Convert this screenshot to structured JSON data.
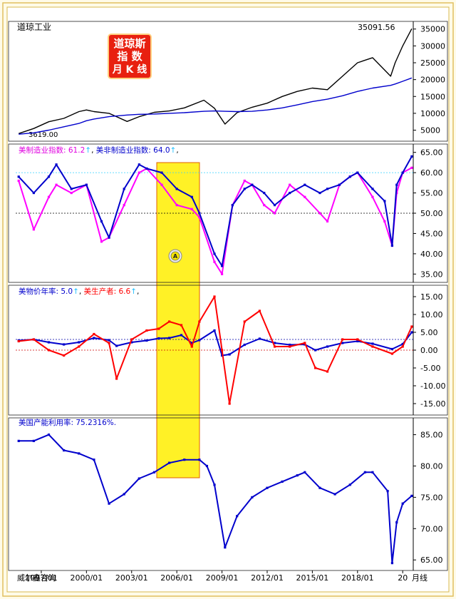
{
  "logo": {
    "line1": "道琼斯",
    "line2": "指  数",
    "line3": "月 K 线"
  },
  "footer": {
    "source": "威尔鑫咨询",
    "period": "月线"
  },
  "chart_data": [
    {
      "type": "line",
      "title": "道琼工业",
      "last_label": "35091.56",
      "low_label": "3619.00",
      "ylim": [
        3000,
        36000
      ],
      "yticks": [
        5000,
        10000,
        15000,
        20000,
        25000,
        30000,
        35000
      ],
      "x": [
        1995.5,
        1996.5,
        1997.5,
        1998.5,
        1999.5,
        2000.0,
        2000.5,
        2001.5,
        2002.7,
        2003.5,
        2004.5,
        2005.5,
        2006.5,
        2007.8,
        2008.5,
        2009.2,
        2010.0,
        2011.0,
        2012.0,
        2013.0,
        2014.0,
        2015.0,
        2016.0,
        2017.0,
        2018.0,
        2019.0,
        2020.2,
        2020.5,
        2021.0,
        2021.6
      ],
      "series": [
        {
          "name": "",
          "color": "#000000",
          "values": [
            4000,
            5500,
            7500,
            8500,
            10500,
            11000,
            10500,
            10000,
            7600,
            9000,
            10300,
            10700,
            11600,
            13900,
            11500,
            6800,
            10200,
            11800,
            13000,
            15000,
            16500,
            17500,
            17000,
            21000,
            25000,
            26500,
            21000,
            25000,
            30000,
            35091.56
          ]
        },
        {
          "name": "",
          "color": "#0000cc",
          "values": [
            3800,
            4200,
            5000,
            6000,
            7000,
            7800,
            8300,
            9000,
            9500,
            9700,
            9800,
            10000,
            10200,
            10600,
            10700,
            10600,
            10500,
            10600,
            11000,
            11600,
            12500,
            13500,
            14200,
            15200,
            16500,
            17500,
            18300,
            18700,
            19500,
            20500
          ]
        }
      ]
    },
    {
      "type": "line",
      "title": "",
      "ylim": [
        34,
        66
      ],
      "yticks": [
        35,
        40,
        45,
        50,
        55,
        60,
        65
      ],
      "ref_lines": [
        50,
        60
      ],
      "x": [
        1995.5,
        1996.5,
        1997.5,
        1998.0,
        1999.0,
        2000.0,
        2001.0,
        2001.5,
        2002.5,
        2003.5,
        2004.0,
        2005.0,
        2006.0,
        2007.0,
        2007.5,
        2008.5,
        2009.0,
        2009.7,
        2010.5,
        2011.0,
        2011.8,
        2012.5,
        2013.5,
        2014.5,
        2015.5,
        2016.0,
        2016.8,
        2017.5,
        2018.0,
        2019.0,
        2019.8,
        2020.3,
        2020.6,
        2021.0,
        2021.6
      ],
      "series": [
        {
          "name": "美制造业指数: 61.2",
          "color": "#ff00ff",
          "values": [
            58,
            46,
            54,
            57,
            55,
            57,
            43,
            44,
            52,
            60,
            61,
            57,
            52,
            51,
            49,
            38,
            35,
            52,
            58,
            57,
            52,
            50,
            57,
            54,
            50,
            48,
            57,
            59,
            60,
            54,
            48,
            42,
            55,
            60,
            61.2
          ]
        },
        {
          "name": "美非制造业指数: 64.0",
          "color": "#0000cc",
          "values": [
            59,
            55,
            59,
            62,
            56,
            57,
            48,
            44,
            56,
            62,
            61,
            60,
            56,
            54,
            50,
            40,
            37,
            52,
            56,
            57,
            55,
            52,
            55,
            57,
            55,
            56,
            57,
            59,
            60,
            56,
            53,
            42,
            57,
            60,
            64.0
          ]
        }
      ]
    },
    {
      "type": "line",
      "title": "",
      "ylim": [
        -17,
        17
      ],
      "yticks": [
        -15,
        -10,
        -5,
        0,
        5,
        10,
        15
      ],
      "ref_lines": [
        0,
        3
      ],
      "x": [
        1995.5,
        1996.5,
        1997.5,
        1998.5,
        1999.5,
        2000.5,
        2001.5,
        2002.0,
        2003.0,
        2004.0,
        2004.8,
        2005.5,
        2006.3,
        2007.0,
        2007.5,
        2008.5,
        2009.0,
        2009.5,
        2010.5,
        2011.5,
        2012.5,
        2013.5,
        2014.5,
        2015.2,
        2016.0,
        2017.0,
        2018.0,
        2019.0,
        2020.3,
        2021.0,
        2021.6
      ],
      "series": [
        {
          "name": "美物价年率: 5.0",
          "color": "#0000cc",
          "values": [
            2.7,
            3.0,
            2.2,
            1.6,
            2.2,
            3.4,
            2.8,
            1.2,
            2.2,
            2.7,
            3.3,
            3.4,
            4.2,
            2.0,
            2.8,
            5.5,
            -1.5,
            -1.2,
            1.5,
            3.2,
            2.0,
            1.5,
            1.6,
            0.0,
            1.0,
            2.0,
            2.5,
            1.8,
            0.3,
            1.7,
            5.0
          ]
        },
        {
          "name": "美生产者: 6.6",
          "color": "#ff0000",
          "values": [
            2.5,
            3.0,
            0.0,
            -1.5,
            1.0,
            4.5,
            2.0,
            -8.0,
            3.0,
            5.5,
            6.0,
            8.0,
            7.0,
            1.0,
            8.0,
            15.0,
            0.0,
            -15.0,
            8.0,
            11.0,
            1.0,
            1.0,
            2.0,
            -5.0,
            -6.0,
            3.0,
            3.0,
            1.0,
            -1.0,
            1.0,
            6.6
          ]
        }
      ]
    },
    {
      "type": "line",
      "title": "美国产能利用率: 75.2316%.",
      "ylim": [
        64,
        87
      ],
      "yticks": [
        65,
        70,
        75,
        80,
        85
      ],
      "xticks": [
        "1997/01",
        "2000/01",
        "2003/01",
        "2006/01",
        "2009/01",
        "2012/01",
        "2015/01",
        "2018/01",
        "20"
      ],
      "xtick_years": [
        1997.0,
        2000.0,
        2003.0,
        2006.0,
        2009.0,
        2012.0,
        2015.0,
        2018.0,
        2021.0
      ],
      "x": [
        1995.5,
        1996.5,
        1997.5,
        1998.5,
        1999.5,
        2000.5,
        2001.5,
        2002.5,
        2003.5,
        2004.5,
        2005.5,
        2006.5,
        2007.5,
        2008.0,
        2008.5,
        2009.2,
        2010.0,
        2011.0,
        2012.0,
        2013.0,
        2014.0,
        2014.5,
        2015.5,
        2016.5,
        2017.5,
        2018.5,
        2019.0,
        2020.0,
        2020.3,
        2020.6,
        2021.0,
        2021.6
      ],
      "series": [
        {
          "name": "",
          "color": "#0000cc",
          "values": [
            84,
            84,
            85,
            82.5,
            82,
            81,
            74,
            75.5,
            78,
            79,
            80.5,
            81,
            81,
            80,
            77,
            67,
            72,
            75,
            76.5,
            77.5,
            78.5,
            79,
            76.5,
            75.5,
            77,
            79,
            79,
            76,
            64.5,
            71,
            74,
            75.23
          ]
        }
      ]
    }
  ]
}
